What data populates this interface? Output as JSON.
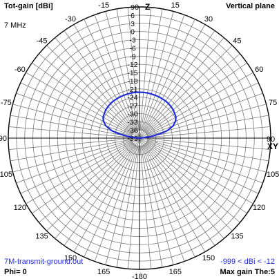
{
  "header": {
    "top_left": "Tot-gain [dBi]",
    "top_right": "Vertical plane",
    "frequency": "7 MHz"
  },
  "footer": {
    "file": "7M-transmit-ground.out",
    "range": "-999 < dBi < -12",
    "phi": "Phi= 0",
    "max_gain": "Max gain The:5"
  },
  "axis_labels": {
    "top": "Z",
    "right": "XY"
  },
  "chart_data": {
    "type": "polar",
    "title": "Vertical plane",
    "quantity": "Tot-gain [dBi]",
    "angle_ticks": [
      0,
      15,
      30,
      45,
      60,
      75,
      90,
      105,
      120,
      135,
      150,
      165,
      -180,
      165,
      150,
      135,
      120,
      105,
      -90,
      -75,
      -60,
      -45,
      -30,
      -15
    ],
    "radial_ticks": [
      9,
      3,
      -3,
      -9,
      -15,
      -21,
      -27,
      -33,
      -39,
      6,
      0,
      -6,
      -12,
      -18,
      -24,
      -30,
      -36
    ],
    "radial_label_order": [
      "9",
      "6",
      "3",
      "0",
      "-3",
      "-6",
      "-9",
      "-12",
      "-15",
      "-18",
      "-21",
      "-24",
      "-27",
      "-30",
      "-33",
      "-36",
      "-39"
    ],
    "series": [
      {
        "color": "#1f2bd6",
        "theta_deg": [
          -90,
          -85,
          -82,
          -78,
          -75,
          -70,
          -65,
          -60,
          -55,
          -50,
          -45,
          -40,
          -35,
          -30,
          -25,
          -20,
          -15,
          -10,
          -5,
          0,
          5,
          10,
          15,
          20,
          25,
          30,
          35,
          40,
          45,
          50,
          55,
          60,
          65,
          70,
          75,
          78,
          82,
          85,
          90
        ],
        "gain_dbi": [
          -39,
          -37.6,
          -34.6,
          -31.2,
          -28.5,
          -25.9,
          -24.5,
          -23.6,
          -23.3,
          -22.9,
          -22.7,
          -22.5,
          -22.4,
          -22.4,
          -22.3,
          -22.3,
          -22.3,
          -22.2,
          -22.2,
          -22.2,
          -22.2,
          -22.2,
          -22.3,
          -22.3,
          -22.3,
          -22.4,
          -22.4,
          -22.5,
          -22.7,
          -22.9,
          -23.3,
          -23.6,
          -24.5,
          -25.9,
          -28.5,
          -31.2,
          -34.6,
          -37.6,
          -39
        ]
      }
    ]
  }
}
